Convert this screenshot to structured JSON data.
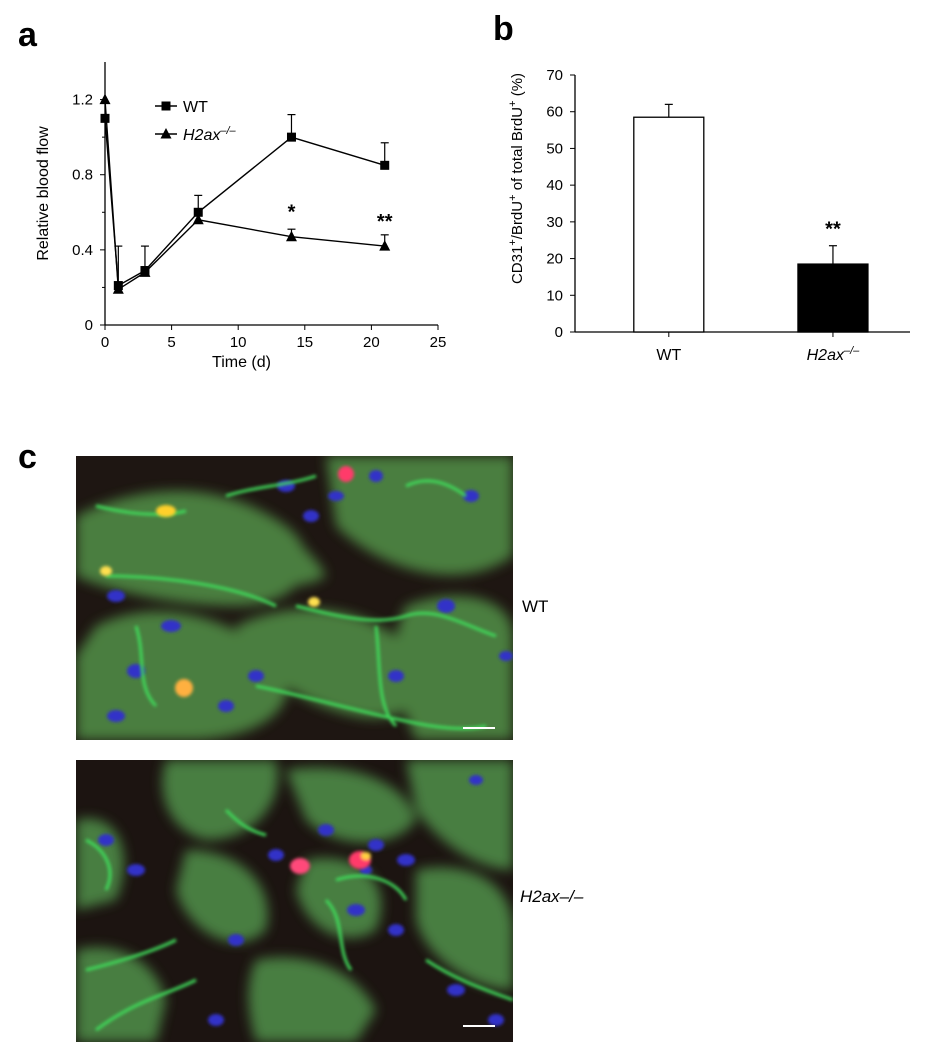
{
  "panels": {
    "a": "a",
    "b": "b",
    "c": "c"
  },
  "chart_data": [
    {
      "type": "line",
      "panel": "a",
      "xlabel": "Time (d)",
      "ylabel": "Relative blood flow",
      "xlim": [
        0,
        25
      ],
      "ylim": [
        0,
        1.4
      ],
      "xticks": [
        "0",
        "5",
        "10",
        "15",
        "20",
        "25"
      ],
      "yticks": [
        "0",
        "0.4",
        "0.8",
        "1.2"
      ],
      "legend_position": "top-left",
      "series": [
        {
          "name": "WT",
          "marker": "square",
          "x": [
            0,
            1,
            3,
            7,
            14,
            21
          ],
          "y": [
            1.1,
            0.21,
            0.29,
            0.6,
            1.0,
            0.85
          ],
          "error": [
            0,
            0.21,
            0.13,
            0.09,
            0.12,
            0.12
          ]
        },
        {
          "name": "H2ax–/–",
          "marker": "triangle",
          "x": [
            0,
            1,
            3,
            7,
            14,
            21
          ],
          "y": [
            1.2,
            0.19,
            0.28,
            0.56,
            0.47,
            0.42
          ],
          "error": [
            0,
            0,
            0,
            0,
            0.04,
            0.06
          ]
        }
      ],
      "annotations": [
        {
          "x": 14,
          "y": 0.47,
          "text": "*"
        },
        {
          "x": 21,
          "y": 0.42,
          "text": "**"
        }
      ]
    },
    {
      "type": "bar",
      "panel": "b",
      "ylabel": "CD31+/BrdU+ of total BrdU+ (%)",
      "ylim": [
        0,
        70
      ],
      "yticks": [
        "0",
        "10",
        "20",
        "30",
        "40",
        "50",
        "60",
        "70"
      ],
      "categories": [
        "WT",
        "H2ax–/–"
      ],
      "values": [
        58.5,
        18.5
      ],
      "errors": [
        3.5,
        5
      ],
      "colors": [
        "#ffffff",
        "#000000"
      ],
      "annotations": [
        {
          "category": "H2ax–/–",
          "text": "**"
        }
      ]
    }
  ],
  "panel_c": {
    "labels": [
      "WT",
      "H2ax–/–"
    ]
  }
}
